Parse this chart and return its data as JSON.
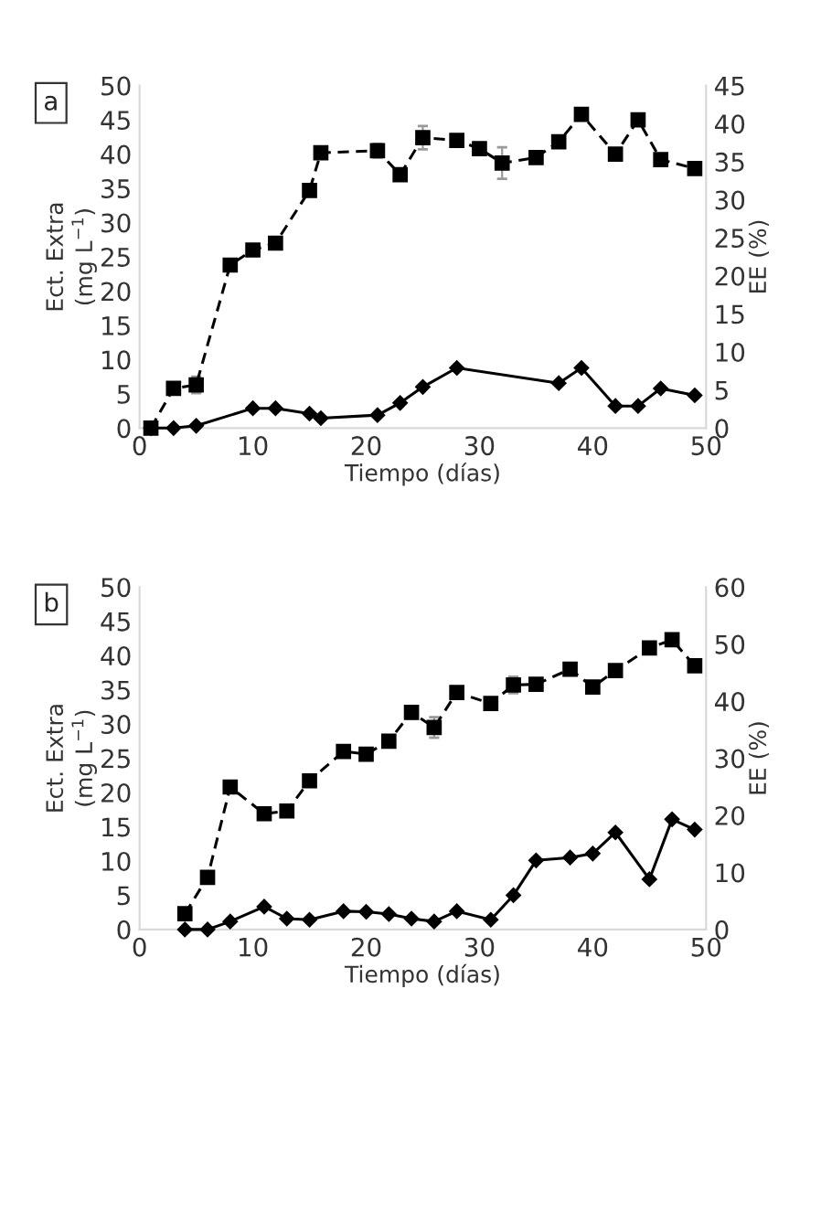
{
  "chart_data": [
    {
      "type": "line",
      "xlabel": "Tiempo (días)",
      "ylabel": "Ect. Extra\n(mg L$^{−1}$)",
      "y2label": "EE (%)",
      "annotations": [
        "a"
      ],
      "xlim": [
        0,
        50
      ],
      "xticks": [
        0,
        10,
        20,
        30,
        40,
        50
      ],
      "ylim": [
        0,
        50
      ],
      "yticks": [
        0,
        5,
        10,
        15,
        20,
        25,
        30,
        35,
        40,
        45,
        50
      ],
      "y2lim": [
        0,
        45
      ],
      "y2ticks": [
        0,
        5,
        10,
        15,
        20,
        25,
        30,
        35,
        40,
        45
      ],
      "grid": false,
      "legend": false,
      "series": [
        {
          "color": "#000000",
          "marker": "square",
          "line_style": "dashed",
          "x": [
            1,
            3,
            5,
            8,
            10,
            12,
            15,
            16,
            21,
            23,
            25,
            28,
            30,
            32,
            35,
            37,
            39,
            42,
            44,
            46,
            49
          ],
          "values": [
            0,
            5.8,
            6.3,
            23.8,
            26,
            27,
            34.7,
            40.2,
            40.5,
            37,
            42.4,
            42,
            40.8,
            38.7,
            39.5,
            41.8,
            45.8,
            40,
            45,
            39.2,
            37.9
          ],
          "errors": [
            null,
            null,
            1.2,
            null,
            0.6,
            null,
            null,
            null,
            1,
            null,
            1.7,
            null,
            null,
            2.3,
            null,
            null,
            0.8,
            null,
            null,
            null,
            null
          ]
        },
        {
          "color": "#000000",
          "marker": "diamond",
          "line_style": "solid",
          "axis": "y2",
          "x": [
            1,
            3,
            5,
            10,
            12,
            15,
            16,
            21,
            23,
            25,
            28,
            37,
            39,
            42,
            44,
            46,
            49
          ],
          "values": [
            0,
            0,
            0.3,
            2.6,
            2.6,
            1.9,
            1.3,
            1.7,
            3.3,
            5.4,
            7.9,
            5.9,
            7.9,
            2.9,
            2.9,
            5.2,
            4.3
          ]
        }
      ]
    },
    {
      "type": "line",
      "xlabel": "Tiempo (días)",
      "ylabel": "Ect. Extra\n(mg L$^{−1}$)",
      "y2label": "EE (%)",
      "annotations": [
        "b"
      ],
      "xlim": [
        0,
        50
      ],
      "xticks": [
        0,
        10,
        20,
        30,
        40,
        50
      ],
      "ylim": [
        0,
        50
      ],
      "yticks": [
        0,
        5,
        10,
        15,
        20,
        25,
        30,
        35,
        40,
        45,
        50
      ],
      "y2lim": [
        0,
        60
      ],
      "y2ticks": [
        0,
        10,
        20,
        30,
        40,
        50,
        60
      ],
      "grid": false,
      "legend": false,
      "series": [
        {
          "color": "#000000",
          "marker": "square",
          "line_style": "dashed",
          "x": [
            4,
            6,
            8,
            11,
            13,
            15,
            18,
            20,
            22,
            24,
            26,
            28,
            31,
            33,
            35,
            38,
            40,
            42,
            45,
            47,
            49
          ],
          "values": [
            2.3,
            7.6,
            20.8,
            16.9,
            17.3,
            21.7,
            26,
            25.6,
            27.5,
            31.7,
            29.5,
            34.6,
            33,
            35.7,
            35.8,
            38,
            35.4,
            37.8,
            41.1,
            42.3,
            38.5
          ],
          "errors": [
            null,
            null,
            null,
            null,
            null,
            null,
            null,
            null,
            null,
            0.9,
            1.5,
            null,
            null,
            1.2,
            null,
            null,
            null,
            null,
            null,
            null,
            null
          ]
        },
        {
          "color": "#000000",
          "marker": "diamond",
          "line_style": "solid",
          "axis": "y2",
          "x": [
            4,
            6,
            8,
            11,
            13,
            15,
            18,
            20,
            22,
            24,
            26,
            28,
            31,
            33,
            35,
            38,
            40,
            42,
            45,
            47,
            49
          ],
          "values": [
            0,
            0,
            1.4,
            4,
            1.9,
            1.7,
            3.2,
            3.1,
            2.7,
            1.9,
            1.4,
            3.2,
            1.7,
            6,
            12.1,
            12.6,
            13.3,
            17,
            8.8,
            19.3,
            17.5
          ]
        }
      ]
    }
  ]
}
